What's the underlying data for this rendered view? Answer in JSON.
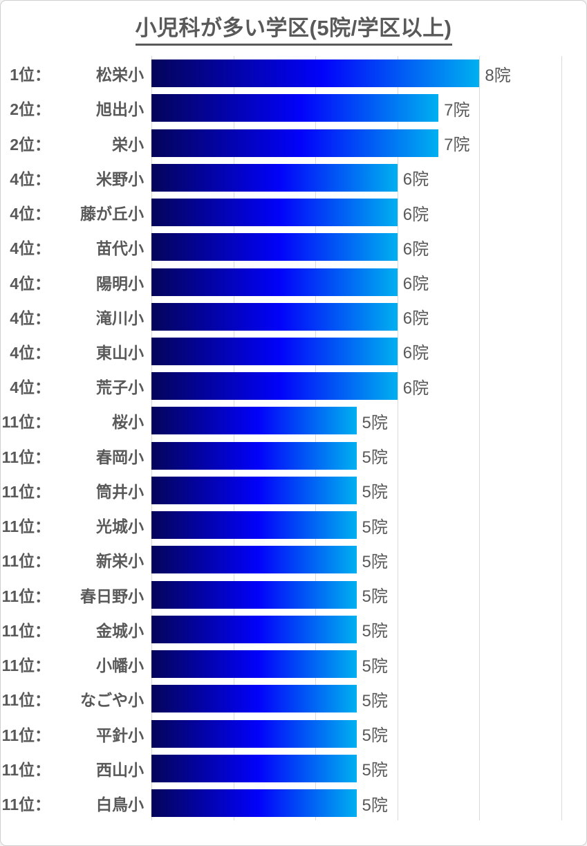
{
  "title": "小児科が多い学区(5院/学区以上)",
  "colors": {
    "background": "#ffffff",
    "border": "#cfcfcf",
    "text": "#595959",
    "gridline": "#d9d9d9",
    "bar_gradient_start": "#04045a",
    "bar_gradient_mid": "#0202fa",
    "bar_gradient_end": "#00b0f0"
  },
  "chart_data": {
    "type": "bar",
    "orientation": "horizontal",
    "title": "小児科が多い学区(5院/学区以上)",
    "value_suffix": "院",
    "xlim": [
      0,
      10
    ],
    "gridline_interval": 2,
    "grid": true,
    "legend": false,
    "categories": [
      "松栄小",
      "旭出小",
      "栄小",
      "米野小",
      "藤が丘小",
      "苗代小",
      "陽明小",
      "滝川小",
      "東山小",
      "荒子小",
      "桜小",
      "春岡小",
      "筒井小",
      "光城小",
      "新栄小",
      "春日野小",
      "金城小",
      "小幡小",
      "なごや小",
      "平針小",
      "西山小",
      "白鳥小"
    ],
    "values": [
      8,
      7,
      7,
      6,
      6,
      6,
      6,
      6,
      6,
      6,
      5,
      5,
      5,
      5,
      5,
      5,
      5,
      5,
      5,
      5,
      5,
      5
    ],
    "rows": [
      {
        "rank": "1位：",
        "name": "松栄小",
        "value": 8,
        "value_label": "8院"
      },
      {
        "rank": "2位：",
        "name": "旭出小",
        "value": 7,
        "value_label": "7院"
      },
      {
        "rank": "2位：",
        "name": "栄小",
        "value": 7,
        "value_label": "7院"
      },
      {
        "rank": "4位：",
        "name": "米野小",
        "value": 6,
        "value_label": "6院"
      },
      {
        "rank": "4位：",
        "name": "藤が丘小",
        "value": 6,
        "value_label": "6院"
      },
      {
        "rank": "4位：",
        "name": "苗代小",
        "value": 6,
        "value_label": "6院"
      },
      {
        "rank": "4位：",
        "name": "陽明小",
        "value": 6,
        "value_label": "6院"
      },
      {
        "rank": "4位：",
        "name": "滝川小",
        "value": 6,
        "value_label": "6院"
      },
      {
        "rank": "4位：",
        "name": "東山小",
        "value": 6,
        "value_label": "6院"
      },
      {
        "rank": "4位：",
        "name": "荒子小",
        "value": 6,
        "value_label": "6院"
      },
      {
        "rank": "11位：",
        "name": "桜小",
        "value": 5,
        "value_label": "5院"
      },
      {
        "rank": "11位：",
        "name": "春岡小",
        "value": 5,
        "value_label": "5院"
      },
      {
        "rank": "11位：",
        "name": "筒井小",
        "value": 5,
        "value_label": "5院"
      },
      {
        "rank": "11位：",
        "name": "光城小",
        "value": 5,
        "value_label": "5院"
      },
      {
        "rank": "11位：",
        "name": "新栄小",
        "value": 5,
        "value_label": "5院"
      },
      {
        "rank": "11位：",
        "name": "春日野小",
        "value": 5,
        "value_label": "5院"
      },
      {
        "rank": "11位：",
        "name": "金城小",
        "value": 5,
        "value_label": "5院"
      },
      {
        "rank": "11位：",
        "name": "小幡小",
        "value": 5,
        "value_label": "5院"
      },
      {
        "rank": "11位：",
        "name": "なごや小",
        "value": 5,
        "value_label": "5院"
      },
      {
        "rank": "11位：",
        "name": "平針小",
        "value": 5,
        "value_label": "5院"
      },
      {
        "rank": "11位：",
        "name": "西山小",
        "value": 5,
        "value_label": "5院"
      },
      {
        "rank": "11位：",
        "name": "白鳥小",
        "value": 5,
        "value_label": "5院"
      }
    ]
  }
}
